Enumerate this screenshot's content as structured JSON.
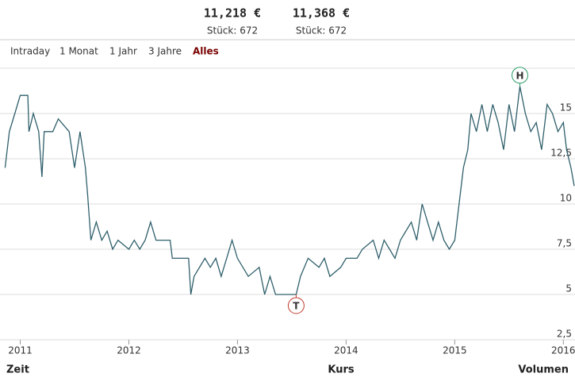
{
  "header": {
    "quotes": [
      {
        "price": "11,218 €",
        "volume": "Stück: 672"
      },
      {
        "price": "11,368 €",
        "volume": "Stück: 672"
      }
    ]
  },
  "tabs": [
    "Intraday",
    "1 Monat",
    "1 Jahr",
    "3 Jahre",
    "Alles"
  ],
  "active_tab": 4,
  "footer": [
    "Zeit",
    "Kurs",
    "Volumen"
  ],
  "chart_data": {
    "type": "line",
    "x": [
      2010.86,
      2010.9,
      2010.95,
      2011.0,
      2011.07,
      2011.08,
      2011.12,
      2011.17,
      2011.2,
      2011.22,
      2011.3,
      2011.35,
      2011.45,
      2011.5,
      2011.55,
      2011.6,
      2011.62,
      2011.65,
      2011.7,
      2011.75,
      2011.8,
      2011.85,
      2011.9,
      2012.0,
      2012.05,
      2012.1,
      2012.15,
      2012.2,
      2012.25,
      2012.38,
      2012.4,
      2012.55,
      2012.57,
      2012.6,
      2012.7,
      2012.75,
      2012.8,
      2012.85,
      2012.9,
      2012.95,
      2013.0,
      2013.1,
      2013.2,
      2013.25,
      2013.3,
      2013.35,
      2013.45,
      2013.54,
      2013.58,
      2013.65,
      2013.75,
      2013.8,
      2013.85,
      2013.95,
      2014.0,
      2014.1,
      2014.15,
      2014.25,
      2014.3,
      2014.35,
      2014.4,
      2014.45,
      2014.5,
      2014.6,
      2014.65,
      2014.7,
      2014.75,
      2014.8,
      2014.85,
      2014.9,
      2014.95,
      2015.0,
      2015.02,
      2015.05,
      2015.08,
      2015.12,
      2015.15,
      2015.2,
      2015.25,
      2015.3,
      2015.35,
      2015.4,
      2015.45,
      2015.5,
      2015.55,
      2015.6,
      2015.65,
      2015.7,
      2015.75,
      2015.8,
      2015.85,
      2015.9,
      2015.95,
      2016.0,
      2016.03,
      2016.07,
      2016.1
    ],
    "series": [
      {
        "name": "Kurs",
        "color": "#2f5f6b",
        "values": [
          12,
          14,
          15,
          16,
          16,
          14,
          15,
          14,
          11.5,
          14,
          14,
          14.7,
          14,
          12,
          14,
          12,
          10.5,
          8,
          9,
          8,
          8.5,
          7.5,
          8,
          7.5,
          8,
          7.5,
          8,
          9,
          8,
          8,
          7,
          7,
          5,
          6,
          7,
          6.5,
          7,
          6,
          7,
          8,
          7,
          6,
          6.5,
          5,
          6,
          5,
          5,
          5,
          6,
          7,
          6.5,
          7,
          6,
          6.5,
          7,
          7,
          7.5,
          8,
          7,
          8,
          7.5,
          7,
          8,
          9,
          8,
          10,
          9,
          8,
          9,
          8,
          7.5,
          8,
          9,
          10.5,
          12,
          13,
          15,
          14,
          15.5,
          14,
          15.5,
          14.5,
          13,
          15.5,
          14,
          16.5,
          15,
          14,
          14.5,
          13,
          15.5,
          15,
          14,
          14.5,
          13,
          12,
          11
        ]
      }
    ],
    "annotations": [
      {
        "label": "H",
        "x": 2015.6,
        "y": 16.5
      },
      {
        "label": "T",
        "x": 2013.54,
        "y": 5
      }
    ],
    "xlim": [
      2010.85,
      2016.1
    ],
    "xticks": [
      2011,
      2012,
      2013,
      2014,
      2015,
      2016
    ],
    "ylim": [
      2.5,
      17.5
    ],
    "yticks": [
      {
        "value": 2.5,
        "label": "2,5"
      },
      5,
      {
        "value": 7.5,
        "label": "7,5"
      },
      10,
      {
        "value": 12.5,
        "label": "12,5"
      },
      15
    ],
    "grid": true
  }
}
